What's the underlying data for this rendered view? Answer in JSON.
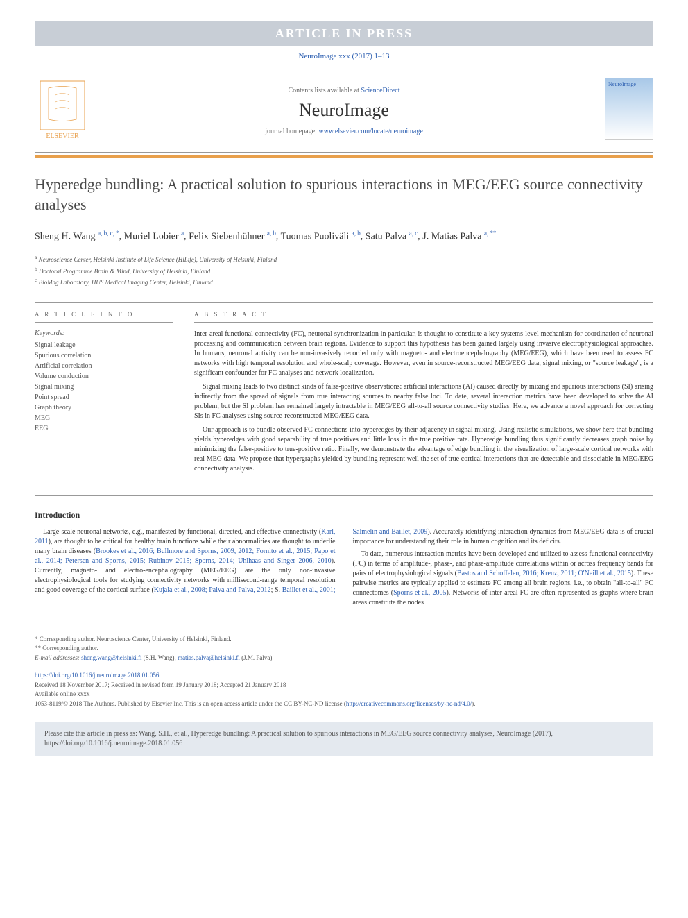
{
  "banner": "ARTICLE IN PRESS",
  "journal_line": "NeuroImage xxx (2017) 1–13",
  "header": {
    "contents_prefix": "Contents lists available at ",
    "contents_link": "ScienceDirect",
    "journal_name": "NeuroImage",
    "homepage_prefix": "journal homepage: ",
    "homepage_link": "www.elsevier.com/locate/neuroimage",
    "publisher": "ELSEVIER"
  },
  "title": "Hyperedge bundling: A practical solution to spurious interactions in MEG/EEG source connectivity analyses",
  "authors_html": "Sheng H. Wang <sup>a, b, c, *</sup>, Muriel Lobier <sup>a</sup>, Felix Siebenhühner <sup>a, b</sup>, Tuomas Puoliväli <sup>a, b</sup>, Satu Palva <sup>a, c</sup>, J. Matias Palva <sup>a, **</sup>",
  "affiliations": [
    {
      "sup": "a",
      "text": "Neuroscience Center, Helsinki Institute of Life Science (HiLife), University of Helsinki, Finland"
    },
    {
      "sup": "b",
      "text": "Doctoral Programme Brain & Mind, University of Helsinki, Finland"
    },
    {
      "sup": "c",
      "text": "BioMag Laboratory, HUS Medical Imaging Center, Helsinki, Finland"
    }
  ],
  "article_info": {
    "heading": "A R T I C L E  I N F O",
    "keywords_label": "Keywords:",
    "keywords": [
      "Signal leakage",
      "Spurious correlation",
      "Artificial correlation",
      "Volume conduction",
      "Signal mixing",
      "Point spread",
      "Graph theory",
      "MEG",
      "EEG"
    ]
  },
  "abstract": {
    "heading": "A B S T R A C T",
    "paragraphs": [
      "Inter-areal functional connectivity (FC), neuronal synchronization in particular, is thought to constitute a key systems-level mechanism for coordination of neuronal processing and communication between brain regions. Evidence to support this hypothesis has been gained largely using invasive electrophysiological approaches. In humans, neuronal activity can be non-invasively recorded only with magneto- and electroencephalography (MEG/EEG), which have been used to assess FC networks with high temporal resolution and whole-scalp coverage. However, even in source-reconstructed MEG/EEG data, signal mixing, or \"source leakage\", is a significant confounder for FC analyses and network localization.",
      "Signal mixing leads to two distinct kinds of false-positive observations: artificial interactions (AI) caused directly by mixing and spurious interactions (SI) arising indirectly from the spread of signals from true interacting sources to nearby false loci. To date, several interaction metrics have been developed to solve the AI problem, but the SI problem has remained largely intractable in MEG/EEG all-to-all source connectivity studies. Here, we advance a novel approach for correcting SIs in FC analyses using source-reconstructed MEG/EEG data.",
      "Our approach is to bundle observed FC connections into hyperedges by their adjacency in signal mixing. Using realistic simulations, we show here that bundling yields hyperedges with good separability of true positives and little loss in the true positive rate. Hyperedge bundling thus significantly decreases graph noise by minimizing the false-positive to true-positive ratio. Finally, we demonstrate the advantage of edge bundling in the visualization of large-scale cortical networks with real MEG data. We propose that hypergraphs yielded by bundling represent well the set of true cortical interactions that are detectable and dissociable in MEG/EEG connectivity analysis."
    ]
  },
  "intro": {
    "heading": "Introduction",
    "text_parts": {
      "p1a": "Large-scale neuronal networks, e.g., manifested by functional, directed, and effective connectivity (",
      "p1_ref1": "Karl, 2011",
      "p1b": "), are thought to be critical for healthy brain functions while their abnormalities are thought to underlie many brain diseases (",
      "p1_ref2": "Brookes et al., 2016; Bullmore and Sporns, 2009, 2012; Fornito et al., 2015; Papo et al., 2014; Petersen and Sporns, 2015; Rubinov 2015; Sporns, 2014; Uhlhaas and Singer 2006, 2010",
      "p1c": "). Currently, magneto- and electro-encephalography (MEG/EEG) are the only non-invasive electrophysiological tools for studying connectivity networks with millisecond-range temporal resolution and good coverage of the cortical surface (",
      "p1_ref3": "Kujala et al., 2008;",
      "p1_ref3b": "Palva and Palva, 2012",
      "p1d": "; S. ",
      "p1_ref4": "Baillet et al., 2001; Salmelin and Baillet, 2009",
      "p1e": "). Accurately identifying interaction dynamics from MEG/EEG data is of crucial importance for understanding their role in human cognition and its deficits.",
      "p2a": "To date, numerous interaction metrics have been developed and utilized to assess functional connectivity (FC) in terms of amplitude-, phase-, and phase-amplitude correlations within or across frequency bands for pairs of electrophysiological signals (",
      "p2_ref1": "Bastos and Schoffelen, 2016; Kreuz, 2011; O'Neill et al., 2015",
      "p2b": "). These pairwise metrics are typically applied to estimate FC among all brain regions, i.e., to obtain \"all-to-all\" FC connectomes (",
      "p2_ref2": "Sporns et al., 2005",
      "p2c": "). Networks of inter-areal FC are often represented as graphs where brain areas constitute the nodes"
    }
  },
  "footnotes": {
    "corr1": "* Corresponding author. Neuroscience Center, University of Helsinki, Finland.",
    "corr2": "** Corresponding author.",
    "email_label": "E-mail addresses: ",
    "email1": "sheng.wang@helsinki.fi",
    "email1_name": " (S.H. Wang), ",
    "email2": "matias.palva@helsinki.fi",
    "email2_name": " (J.M. Palva)."
  },
  "doi": {
    "link": "https://doi.org/10.1016/j.neuroimage.2018.01.056",
    "received": "Received 18 November 2017; Received in revised form 19 January 2018; Accepted 21 January 2018",
    "available": "Available online xxxx",
    "copyright_prefix": "1053-8119/© 2018 The Authors. Published by Elsevier Inc. This is an open access article under the CC BY-NC-ND license (",
    "cc_link": "http://creativecommons.org/licenses/by-nc-nd/4.0/",
    "copyright_suffix": ")."
  },
  "cite_box": "Please cite this article in press as: Wang, S.H., et al., Hyperedge bundling: A practical solution to spurious interactions in MEG/EEG source connectivity analyses, NeuroImage (2017), https://doi.org/10.1016/j.neuroimage.2018.01.056",
  "colors": {
    "banner_bg": "#c8ced6",
    "link": "#2a5db0",
    "orange": "#e8a04c",
    "cite_bg": "#e4e9ef"
  }
}
